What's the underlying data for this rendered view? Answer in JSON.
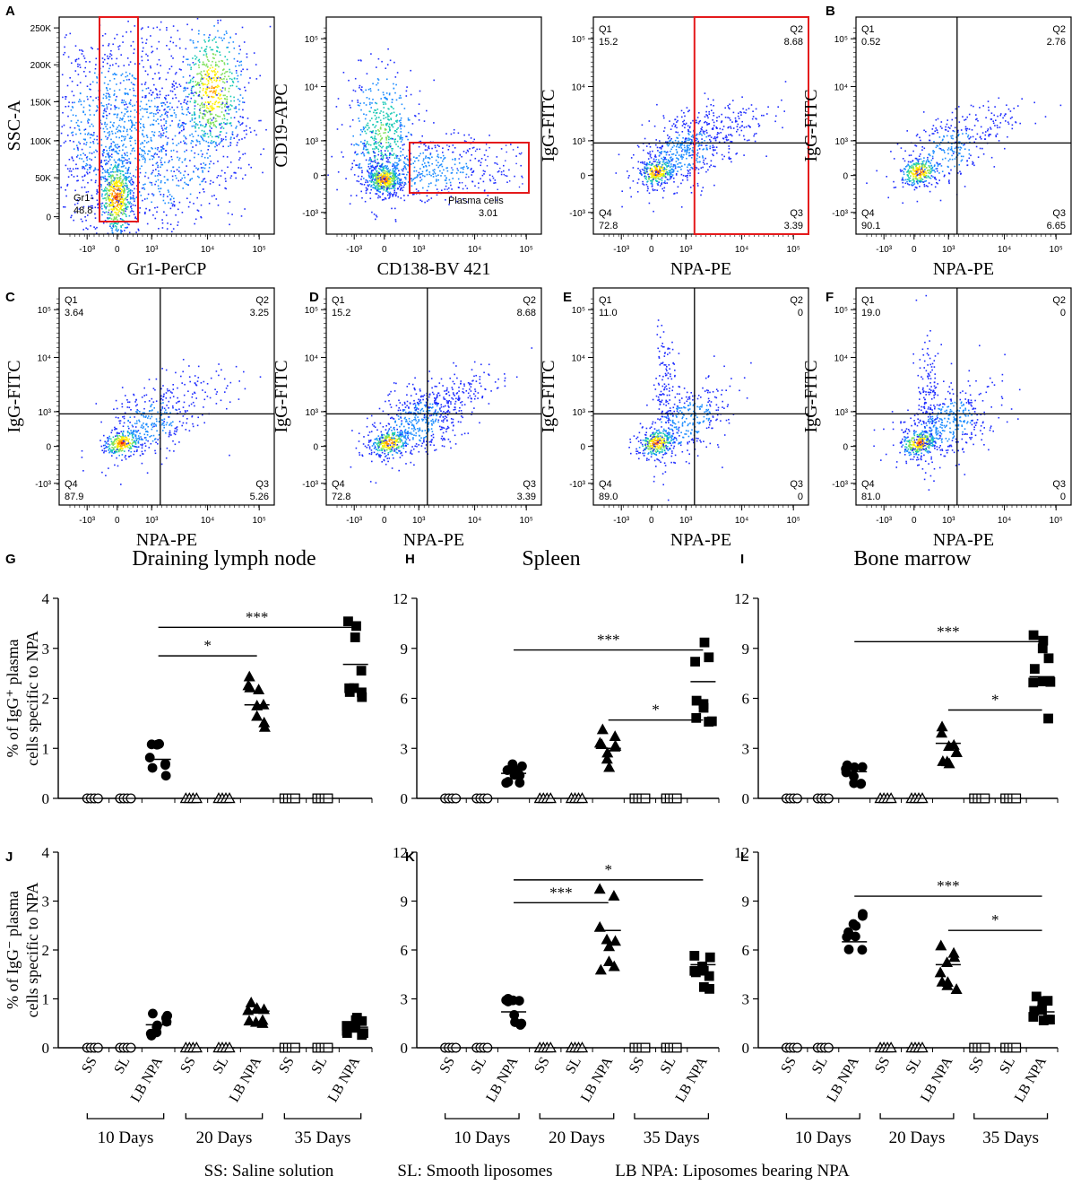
{
  "panel_letters": [
    "A",
    "B",
    "C",
    "D",
    "E",
    "F",
    "G",
    "H",
    "I",
    "J",
    "K",
    "L"
  ],
  "colors": {
    "axis": "#000000",
    "gate": "#e41a1c",
    "density_low": "#1f2dff",
    "density_mid": "#16c8b4",
    "density_high": "#ffef00",
    "density_peak": "#e8190b"
  },
  "flow_panels": [
    {
      "id": "A1",
      "type": "density",
      "title": "",
      "xlabel": "Gr1-PerCP",
      "ylabel": "SSC-A",
      "y_scale": "linear",
      "yticks": [
        "250K",
        "200K",
        "150K",
        "100K",
        "50K",
        "0"
      ],
      "xticks": [
        "-10³",
        "0",
        "10³",
        "10⁴",
        "10⁵"
      ],
      "gates": [
        {
          "name": "Gr1-",
          "value": "48.8"
        }
      ]
    },
    {
      "id": "A2",
      "type": "density",
      "xlabel": "CD138-BV 421",
      "ylabel": "CD19-APC",
      "y_scale": "log",
      "yticks": [
        "10⁵",
        "10⁴",
        "10³",
        "0",
        "-10³"
      ],
      "xticks": [
        "-10³",
        "0",
        "10³",
        "10⁴",
        "10⁵"
      ],
      "gates": [
        {
          "name": "Plasma cells",
          "value": "3.01"
        }
      ]
    },
    {
      "id": "A3",
      "type": "quadrant",
      "xlabel": "NPA-PE",
      "ylabel": "IgG-FITC",
      "quadrants": {
        "Q1": "15.2",
        "Q2": "8.68",
        "Q3": "3.39",
        "Q4": "72.8"
      },
      "highlight_q2_q3": true
    },
    {
      "id": "B",
      "type": "quadrant",
      "xlabel": "NPA-PE",
      "ylabel": "IgG-FITC",
      "quadrants": {
        "Q1": "0.52",
        "Q2": "2.76",
        "Q3": "6.65",
        "Q4": "90.1"
      }
    },
    {
      "id": "C",
      "type": "quadrant",
      "xlabel": "NPA-PE",
      "ylabel": "IgG-FITC",
      "quadrants": {
        "Q1": "3.64",
        "Q2": "3.25",
        "Q3": "5.26",
        "Q4": "87.9"
      }
    },
    {
      "id": "D",
      "type": "quadrant",
      "xlabel": "NPA-PE",
      "ylabel": "IgG-FITC",
      "quadrants": {
        "Q1": "15.2",
        "Q2": "8.68",
        "Q3": "3.39",
        "Q4": "72.8"
      }
    },
    {
      "id": "E",
      "type": "quadrant",
      "xlabel": "NPA-PE",
      "ylabel": "IgG-FITC",
      "quadrants": {
        "Q1": "11.0",
        "Q2": "0",
        "Q3": "0",
        "Q4": "89.0"
      }
    },
    {
      "id": "F",
      "type": "quadrant",
      "xlabel": "NPA-PE",
      "ylabel": "IgG-FITC",
      "quadrants": {
        "Q1": "19.0",
        "Q2": "0",
        "Q3": "0",
        "Q4": "81.0"
      }
    }
  ],
  "chart_data": [
    {
      "panel": "G",
      "type": "scatter",
      "title": "Draining lymph node",
      "ylabel": "% of IgG⁺ plasma cells specific to NPA",
      "ylim": [
        0,
        4
      ],
      "yticks": [
        0,
        1,
        2,
        3,
        4
      ],
      "categories": [
        "SS",
        "SL",
        "LB NPA",
        "SS",
        "SL",
        "LB NPA",
        "SS",
        "SL",
        "LB NPA"
      ],
      "groups": [
        "10 Days",
        "20 Days",
        "35 Days"
      ],
      "series": [
        {
          "name": "10 Days",
          "means": [
            0,
            0,
            0.78
          ]
        },
        {
          "name": "20 Days",
          "means": [
            0,
            0,
            1.87
          ]
        },
        {
          "name": "35 Days",
          "means": [
            0,
            0,
            2.68
          ]
        }
      ],
      "significance": [
        {
          "from": 2,
          "to": 5,
          "label": "*",
          "y": 2.85
        },
        {
          "from": 2,
          "to": 8,
          "label": "***",
          "y": 3.42
        }
      ]
    },
    {
      "panel": "H",
      "type": "scatter",
      "title": "Spleen",
      "ylim": [
        0,
        12
      ],
      "yticks": [
        0,
        3,
        6,
        9,
        12
      ],
      "categories": [
        "SS",
        "SL",
        "LB NPA",
        "SS",
        "SL",
        "LB NPA",
        "SS",
        "SL",
        "LB NPA"
      ],
      "series": [
        {
          "name": "10 Days",
          "means": [
            0,
            0,
            1.5
          ]
        },
        {
          "name": "20 Days",
          "means": [
            0,
            0,
            3.0
          ]
        },
        {
          "name": "35 Days",
          "means": [
            0,
            0,
            7.0
          ]
        }
      ],
      "significance": [
        {
          "from": 2,
          "to": 8,
          "label": "***",
          "y": 8.9
        },
        {
          "from": 5,
          "to": 8,
          "label": "*",
          "y": 4.7
        }
      ]
    },
    {
      "panel": "I",
      "type": "scatter",
      "title": "Bone marrow",
      "ylim": [
        0,
        12
      ],
      "yticks": [
        0,
        3,
        6,
        9,
        12
      ],
      "categories": [
        "SS",
        "SL",
        "LB NPA",
        "SS",
        "SL",
        "LB NPA",
        "SS",
        "SL",
        "LB NPA"
      ],
      "series": [
        {
          "name": "10 Days",
          "means": [
            0,
            0,
            1.6
          ]
        },
        {
          "name": "20 Days",
          "means": [
            0,
            0,
            3.3
          ]
        },
        {
          "name": "35 Days",
          "means": [
            0,
            0,
            7.3
          ]
        }
      ],
      "significance": [
        {
          "from": 2,
          "to": 8,
          "label": "***",
          "y": 9.4
        },
        {
          "from": 5,
          "to": 8,
          "label": "*",
          "y": 5.3
        }
      ]
    },
    {
      "panel": "J",
      "type": "scatter",
      "title": "",
      "ylabel": "% of IgG⁻ plasma cells specific to NPA",
      "ylim": [
        0,
        4
      ],
      "yticks": [
        0,
        1,
        2,
        3,
        4
      ],
      "categories": [
        "SS",
        "SL",
        "LB NPA",
        "SS",
        "SL",
        "LB NPA",
        "SS",
        "SL",
        "LB NPA"
      ],
      "series": [
        {
          "name": "10 Days",
          "means": [
            0,
            0,
            0.47
          ]
        },
        {
          "name": "20 Days",
          "means": [
            0,
            0,
            0.75
          ]
        },
        {
          "name": "35 Days",
          "means": [
            0,
            0,
            0.42
          ]
        }
      ],
      "significance": []
    },
    {
      "panel": "K",
      "type": "scatter",
      "title": "",
      "ylim": [
        0,
        12
      ],
      "yticks": [
        0,
        3,
        6,
        9,
        12
      ],
      "categories": [
        "SS",
        "SL",
        "LB NPA",
        "SS",
        "SL",
        "LB NPA",
        "SS",
        "SL",
        "LB NPA"
      ],
      "series": [
        {
          "name": "10 Days",
          "means": [
            0,
            0,
            2.2
          ]
        },
        {
          "name": "20 Days",
          "means": [
            0,
            0,
            7.2
          ]
        },
        {
          "name": "35 Days",
          "means": [
            0,
            0,
            5.1
          ]
        }
      ],
      "significance": [
        {
          "from": 2,
          "to": 5,
          "label": "***",
          "y": 8.9
        },
        {
          "from": 2,
          "to": 8,
          "label": "*",
          "y": 10.3
        }
      ]
    },
    {
      "panel": "L",
      "type": "scatter",
      "title": "",
      "ylim": [
        0,
        12
      ],
      "yticks": [
        0,
        3,
        6,
        9,
        12
      ],
      "categories": [
        "SS",
        "SL",
        "LB NPA",
        "SS",
        "SL",
        "LB NPA",
        "SS",
        "SL",
        "LB NPA"
      ],
      "series": [
        {
          "name": "10 Days",
          "means": [
            0,
            0,
            6.5
          ]
        },
        {
          "name": "20 Days",
          "means": [
            0,
            0,
            5.1
          ]
        },
        {
          "name": "35 Days",
          "means": [
            0,
            0,
            2.2
          ]
        }
      ],
      "significance": [
        {
          "from": 2,
          "to": 8,
          "label": "***",
          "y": 9.3
        },
        {
          "from": 5,
          "to": 8,
          "label": "*",
          "y": 7.2
        }
      ]
    }
  ],
  "legend": {
    "ss": "SS: Saline solution",
    "sl": "SL: Smooth liposomes",
    "lb": "LB NPA: Liposomes bearing NPA"
  }
}
